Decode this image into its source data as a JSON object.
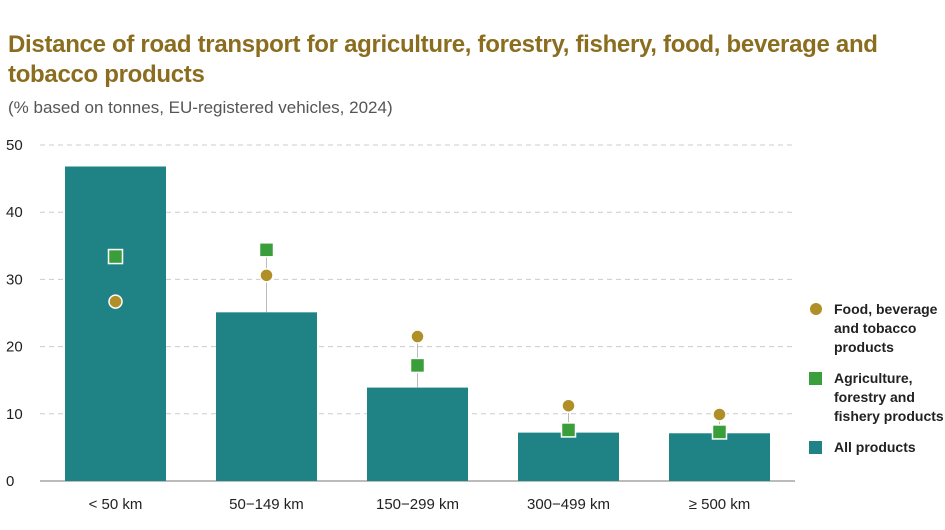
{
  "title": "Distance of road transport for agriculture, forestry, fishery, food, beverage and tobacco products",
  "subtitle": "(% based on tonnes, EU-registered vehicles, 2024)",
  "colors": {
    "all_products": "#1f8385",
    "agriculture": "#3a9e3a",
    "food": "#b08f26",
    "grid": "#cccccc",
    "connector": "#bbbbbb"
  },
  "legend": {
    "food": "Food, beverage and tobacco products",
    "agriculture": "Agriculture, forestry and fishery products",
    "all": "All products"
  },
  "chart_data": {
    "type": "bar",
    "title": "Distance of road transport for agriculture, forestry, fishery, food, beverage and tobacco products",
    "ylabel": "% based on tonnes",
    "ylim": [
      0,
      50
    ],
    "yticks": [
      "0",
      "10",
      "20",
      "30",
      "40",
      "50"
    ],
    "grid": true,
    "legend_position": "right",
    "categories": [
      "< 50 km",
      "50−149 km",
      "150−299 km",
      "300−499 km",
      "≥ 500 km"
    ],
    "series": [
      {
        "name": "All products",
        "marker": "bar",
        "values": [
          46.8,
          25.1,
          13.9,
          7.2,
          7.1
        ]
      },
      {
        "name": "Agriculture, forestry and fishery products",
        "marker": "square",
        "values": [
          33.4,
          34.4,
          17.2,
          7.6,
          7.3
        ]
      },
      {
        "name": "Food, beverage and tobacco products",
        "marker": "circle",
        "values": [
          26.7,
          30.6,
          21.5,
          11.2,
          9.9
        ]
      }
    ]
  }
}
